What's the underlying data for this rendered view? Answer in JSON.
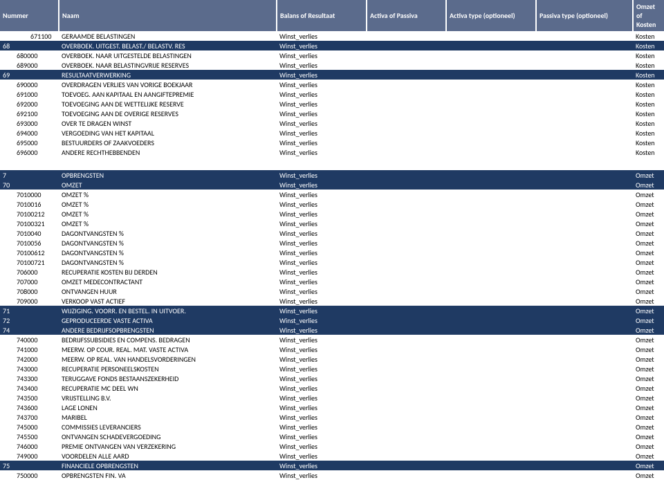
{
  "headers": {
    "num": "Nummer",
    "name": "Naam",
    "bal": "Balans of Resultaat",
    "act": "Activa of Passiva",
    "atype": "Activa type (optioneel)",
    "ptype": "Passiva type (optioneel)",
    "omz": "Omzet of Kosten"
  },
  "rows": [
    {
      "num": "671100",
      "name": "GERAAMDE BELASTINGEN",
      "bal": "Winst_verlies",
      "omz": "Kosten",
      "indent": 2
    },
    {
      "num": "68",
      "name": "OVERBOEK. UITGEST. BELAST./ BELASTV. RES",
      "bal": "Winst_verlies",
      "omz": "Kosten",
      "indent": 0,
      "band": true
    },
    {
      "num": "680000",
      "name": "OVERBOEK. NAAR UITGESTELDE BELASTINGEN",
      "bal": "Winst_verlies",
      "omz": "Kosten",
      "indent": 1
    },
    {
      "num": "689000",
      "name": "OVERBOEK. NAAR BELASTINGVRIJE RESERVES",
      "bal": "Winst_verlies",
      "omz": "Kosten",
      "indent": 1
    },
    {
      "num": "69",
      "name": "RESULTAATVERWERKING",
      "bal": "Winst_verlies",
      "omz": "Kosten",
      "indent": 0,
      "band": true
    },
    {
      "num": "690000",
      "name": "OVERDRAGEN VERLIES VAN VORIGE BOEKJAAR",
      "bal": "Winst_verlies",
      "omz": "Kosten",
      "indent": 1
    },
    {
      "num": "691000",
      "name": "TOEVOEG. AAN KAPITAAL EN AANGIFTEPREMIE",
      "bal": "Winst_verlies",
      "omz": "Kosten",
      "indent": 1
    },
    {
      "num": "692000",
      "name": "TOEVOEGING AAN DE WETTELIJKE RESERVE",
      "bal": "Winst_verlies",
      "omz": "Kosten",
      "indent": 1
    },
    {
      "num": "692100",
      "name": "TOEVOEGING AAN DE OVERIGE RESERVES",
      "bal": "Winst_verlies",
      "omz": "Kosten",
      "indent": 1
    },
    {
      "num": "693000",
      "name": "OVER TE DRAGEN WINST",
      "bal": "Winst_verlies",
      "omz": "Kosten",
      "indent": 1
    },
    {
      "num": "694000",
      "name": "VERGOEDING VAN HET KAPITAAL",
      "bal": "Winst_verlies",
      "omz": "Kosten",
      "indent": 1
    },
    {
      "num": "695000",
      "name": "BESTUURDERS OF ZAAKVOEDERS",
      "bal": "Winst_verlies",
      "omz": "Kosten",
      "indent": 1
    },
    {
      "num": "696000",
      "name": "ANDERE RECHTHEBBENDEN",
      "bal": "Winst_verlies",
      "omz": "Kosten",
      "indent": 1
    },
    {
      "gap": true
    },
    {
      "num": "7",
      "name": "OPBRENGSTEN",
      "bal": "Winst_verlies",
      "omz": "Omzet",
      "indent": 0,
      "band": true
    },
    {
      "num": "70",
      "name": "OMZET",
      "bal": "Winst_verlies",
      "omz": "Omzet",
      "indent": 0,
      "band": true
    },
    {
      "num": "7010000",
      "name": "OMZET %",
      "bal": "Winst_verlies",
      "omz": "Omzet",
      "indent": 1
    },
    {
      "num": "7010016",
      "name": "OMZET %",
      "bal": "Winst_verlies",
      "omz": "Omzet",
      "indent": 1
    },
    {
      "num": "70100212",
      "name": "OMZET %",
      "bal": "Winst_verlies",
      "omz": "Omzet",
      "indent": 1
    },
    {
      "num": "70100321",
      "name": "OMZET %",
      "bal": "Winst_verlies",
      "omz": "Omzet",
      "indent": 1
    },
    {
      "num": "7010040",
      "name": "DAGONTVANGSTEN %",
      "bal": "Winst_verlies",
      "omz": "Omzet",
      "indent": 1
    },
    {
      "num": "7010056",
      "name": "DAGONTVANGSTEN %",
      "bal": "Winst_verlies",
      "omz": "Omzet",
      "indent": 1
    },
    {
      "num": "70100612",
      "name": "DAGONTVANGSTEN %",
      "bal": "Winst_verlies",
      "omz": "Omzet",
      "indent": 1
    },
    {
      "num": "70100721",
      "name": "DAGONTVANGSTEN %",
      "bal": "Winst_verlies",
      "omz": "Omzet",
      "indent": 1
    },
    {
      "num": "706000",
      "name": "RECUPERATIE KOSTEN BIJ DERDEN",
      "bal": "Winst_verlies",
      "omz": "Omzet",
      "indent": 1
    },
    {
      "num": "707000",
      "name": "OMZET MEDECONTRACTANT",
      "bal": "Winst_verlies",
      "omz": "Omzet",
      "indent": 1
    },
    {
      "num": "708000",
      "name": "ONTVANGEN HUUR",
      "bal": "Winst_verlies",
      "omz": "Omzet",
      "indent": 1
    },
    {
      "num": "709000",
      "name": "VERKOOP VAST ACTIEF",
      "bal": "Winst_verlies",
      "omz": "Omzet",
      "indent": 1
    },
    {
      "num": "71",
      "name": "WIJZIGING. VOORR. EN BESTEL. IN UITVOER.",
      "bal": "Winst_verlies",
      "omz": "Omzet",
      "indent": 0,
      "band": true
    },
    {
      "num": "72",
      "name": "GEPRODUCEERDE VASTE ACTIVA",
      "bal": "Winst_verlies",
      "omz": "Omzet",
      "indent": 0,
      "band": true
    },
    {
      "num": "74",
      "name": "ANDERE BEDRIJFSOPBRENGSTEN",
      "bal": "Winst_verlies",
      "omz": "Omzet",
      "indent": 0,
      "band": true
    },
    {
      "num": "740000",
      "name": "BEDRIJFSSUBSIDIES EN COMPENS. BEDRAGEN",
      "bal": "Winst_verlies",
      "omz": "Omzet",
      "indent": 1
    },
    {
      "num": "741000",
      "name": "MEERW. OP COUR. REAL. MAT. VASTE ACTIVA",
      "bal": "Winst_verlies",
      "omz": "Omzet",
      "indent": 1
    },
    {
      "num": "742000",
      "name": "MEERW. OP REAL. VAN HANDELSVORDERINGEN",
      "bal": "Winst_verlies",
      "omz": "Omzet",
      "indent": 1
    },
    {
      "num": "743000",
      "name": "RECUPERATIE PERSONEELSKOSTEN",
      "bal": "Winst_verlies",
      "omz": "Omzet",
      "indent": 1
    },
    {
      "num": "743300",
      "name": "TERUGGAVE FONDS BESTAANSZEKERHEID",
      "bal": "Winst_verlies",
      "omz": "Omzet",
      "indent": 1
    },
    {
      "num": "743400",
      "name": "RECUPERATIE MC DEEL WN",
      "bal": "Winst_verlies",
      "omz": "Omzet",
      "indent": 1
    },
    {
      "num": "743500",
      "name": "VRIJSTELLING B.V.",
      "bal": "Winst_verlies",
      "omz": "Omzet",
      "indent": 1
    },
    {
      "num": "743600",
      "name": "LAGE LONEN",
      "bal": "Winst_verlies",
      "omz": "Omzet",
      "indent": 1
    },
    {
      "num": "743700",
      "name": "MARIBEL",
      "bal": "Winst_verlies",
      "omz": "Omzet",
      "indent": 1
    },
    {
      "num": "745000",
      "name": "COMMISSIES LEVERANCIERS",
      "bal": "Winst_verlies",
      "omz": "Omzet",
      "indent": 1
    },
    {
      "num": "745500",
      "name": "ONTVANGEN SCHADEVERGOEDING",
      "bal": "Winst_verlies",
      "omz": "Omzet",
      "indent": 1
    },
    {
      "num": "746000",
      "name": "PREMIE ONTVANGEN VAN VERZEKERING",
      "bal": "Winst_verlies",
      "omz": "Omzet",
      "indent": 1
    },
    {
      "num": "749000",
      "name": "VOORDELEN ALLE AARD",
      "bal": "Winst_verlies",
      "omz": "Omzet",
      "indent": 1
    },
    {
      "num": "75",
      "name": "FINANCIELE OPBRENGSTEN",
      "bal": "Winst_verlies",
      "omz": "Omzet",
      "indent": 0,
      "band": true
    },
    {
      "num": "750000",
      "name": "OPBRENGSTEN FIN. VA",
      "bal": "Winst_verlies",
      "omz": "Omzet",
      "indent": 1
    }
  ]
}
